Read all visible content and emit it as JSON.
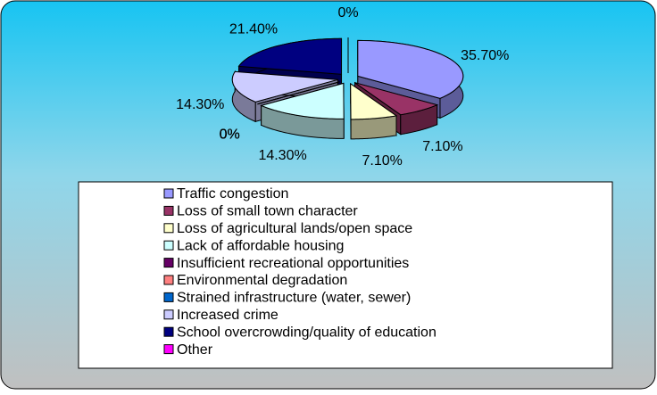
{
  "chart_data": {
    "type": "pie",
    "categories": [
      "Traffic congestion",
      "Loss of small town character",
      "Loss of agricultural lands/open space",
      "Lack of affordable housing",
      "Insufficient recreational opportunities",
      "Environmental degradation",
      "Strained infrastructure (water, sewer)",
      "Increased crime",
      "School overcrowding/quality of education",
      "Other"
    ],
    "values": [
      35.7,
      7.1,
      7.1,
      14.3,
      0,
      0,
      0,
      14.3,
      21.4,
      0
    ],
    "value_labels": [
      "35.70%",
      "7.10%",
      "7.10%",
      "14.30%",
      "0%",
      "0%",
      "0%",
      "14.30%",
      "21.40%",
      "0%"
    ],
    "colors": [
      "#9999ff",
      "#993366",
      "#ffffcc",
      "#ccffff",
      "#660066",
      "#ff8080",
      "#0066cc",
      "#ccccff",
      "#000080",
      "#ff00ff"
    ],
    "legend": "bottom"
  }
}
